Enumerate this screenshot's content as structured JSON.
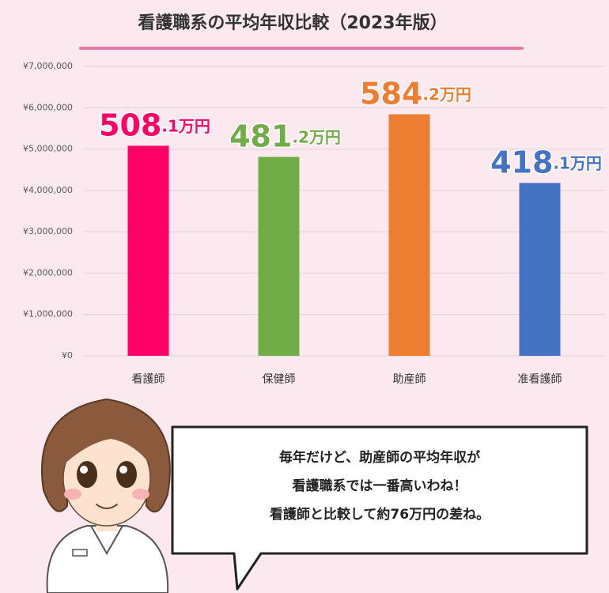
{
  "chart_data": {
    "type": "bar",
    "title": "看護職系の平均年収比較（2023年版）",
    "categories": [
      "看護師",
      "保健師",
      "助産師",
      "准看護師"
    ],
    "series": [
      {
        "name": "平均年収",
        "values": [
          5081000,
          4812000,
          5842000,
          4181000
        ],
        "value_labels": [
          "508.1万円",
          "481.2万円",
          "584.2万円",
          "418.1万円"
        ],
        "colors": [
          "#ff0066",
          "#70ad47",
          "#ed7d31",
          "#4472c4"
        ]
      }
    ],
    "ylim": [
      0,
      7000000
    ],
    "yticks": [
      {
        "value": 0,
        "label": "¥0"
      },
      {
        "value": 1000000,
        "label": "¥1,000,000"
      },
      {
        "value": 2000000,
        "label": "¥2,000,000"
      },
      {
        "value": 3000000,
        "label": "¥3,000,000"
      },
      {
        "value": 4000000,
        "label": "¥4,000,000"
      },
      {
        "value": 5000000,
        "label": "¥5,000,000"
      },
      {
        "value": 6000000,
        "label": "¥6,000,000"
      },
      {
        "value": 7000000,
        "label": "¥7,000,000"
      }
    ],
    "grid": true,
    "annotations": [
      "毎年だけど、助産師の平均年収が",
      "看護職系では一番高いわね！",
      "看護師と比較して約76万円の差ね。"
    ]
  }
}
